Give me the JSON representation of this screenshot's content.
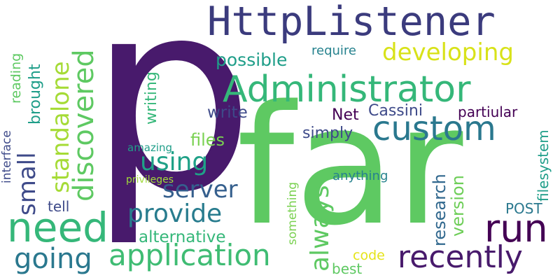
{
  "word_cloud": {
    "colors": {
      "deep_purple": "#481a6c",
      "purple": "#440154",
      "indigo": "#3e4a89",
      "blue": "#31688e",
      "teal": "#26828e",
      "sea": "#1f9e89",
      "green": "#35b779",
      "light_green": "#6ece58",
      "lime": "#b5de2b",
      "yellow": "#fde725"
    },
    "words": [
      {
        "id": "p",
        "text": "p"
      },
      {
        "id": "far",
        "text": "far"
      },
      {
        "id": "httplistener",
        "text": "HttpListener"
      },
      {
        "id": "administrator",
        "text": "Administrator"
      },
      {
        "id": "custom",
        "text": "custom"
      },
      {
        "id": "need",
        "text": "need"
      },
      {
        "id": "run",
        "text": "run"
      },
      {
        "id": "recently",
        "text": "recently"
      },
      {
        "id": "application",
        "text": "application"
      },
      {
        "id": "going",
        "text": "going"
      },
      {
        "id": "developing",
        "text": "developing"
      },
      {
        "id": "provide",
        "text": "provide"
      },
      {
        "id": "server",
        "text": "server"
      },
      {
        "id": "using",
        "text": "using"
      },
      {
        "id": "possible",
        "text": "possible"
      },
      {
        "id": "alternative",
        "text": "alternative"
      },
      {
        "id": "discovered",
        "text": "discovered"
      },
      {
        "id": "standalone",
        "text": "standalone"
      },
      {
        "id": "always",
        "text": "always"
      },
      {
        "id": "small",
        "text": "small"
      },
      {
        "id": "brought",
        "text": "brought"
      },
      {
        "id": "reading",
        "text": "reading"
      },
      {
        "id": "interface",
        "text": "interface"
      },
      {
        "id": "writing",
        "text": "writing"
      },
      {
        "id": "write",
        "text": "write"
      },
      {
        "id": "files",
        "text": "files"
      },
      {
        "id": "net",
        "text": "Net"
      },
      {
        "id": "cassini",
        "text": "Cassini"
      },
      {
        "id": "partiular",
        "text": "partiular"
      },
      {
        "id": "simply",
        "text": "simply"
      },
      {
        "id": "require",
        "text": "require"
      },
      {
        "id": "best",
        "text": "best"
      },
      {
        "id": "filesystem",
        "text": "filesystem"
      },
      {
        "id": "research",
        "text": "research"
      },
      {
        "id": "version",
        "text": "version"
      },
      {
        "id": "post",
        "text": "POST"
      },
      {
        "id": "code",
        "text": "code"
      },
      {
        "id": "amazing",
        "text": "amazing"
      },
      {
        "id": "privileges",
        "text": "privileges"
      },
      {
        "id": "tell",
        "text": "tell"
      },
      {
        "id": "something",
        "text": "something"
      },
      {
        "id": "anything",
        "text": "anything"
      }
    ]
  }
}
